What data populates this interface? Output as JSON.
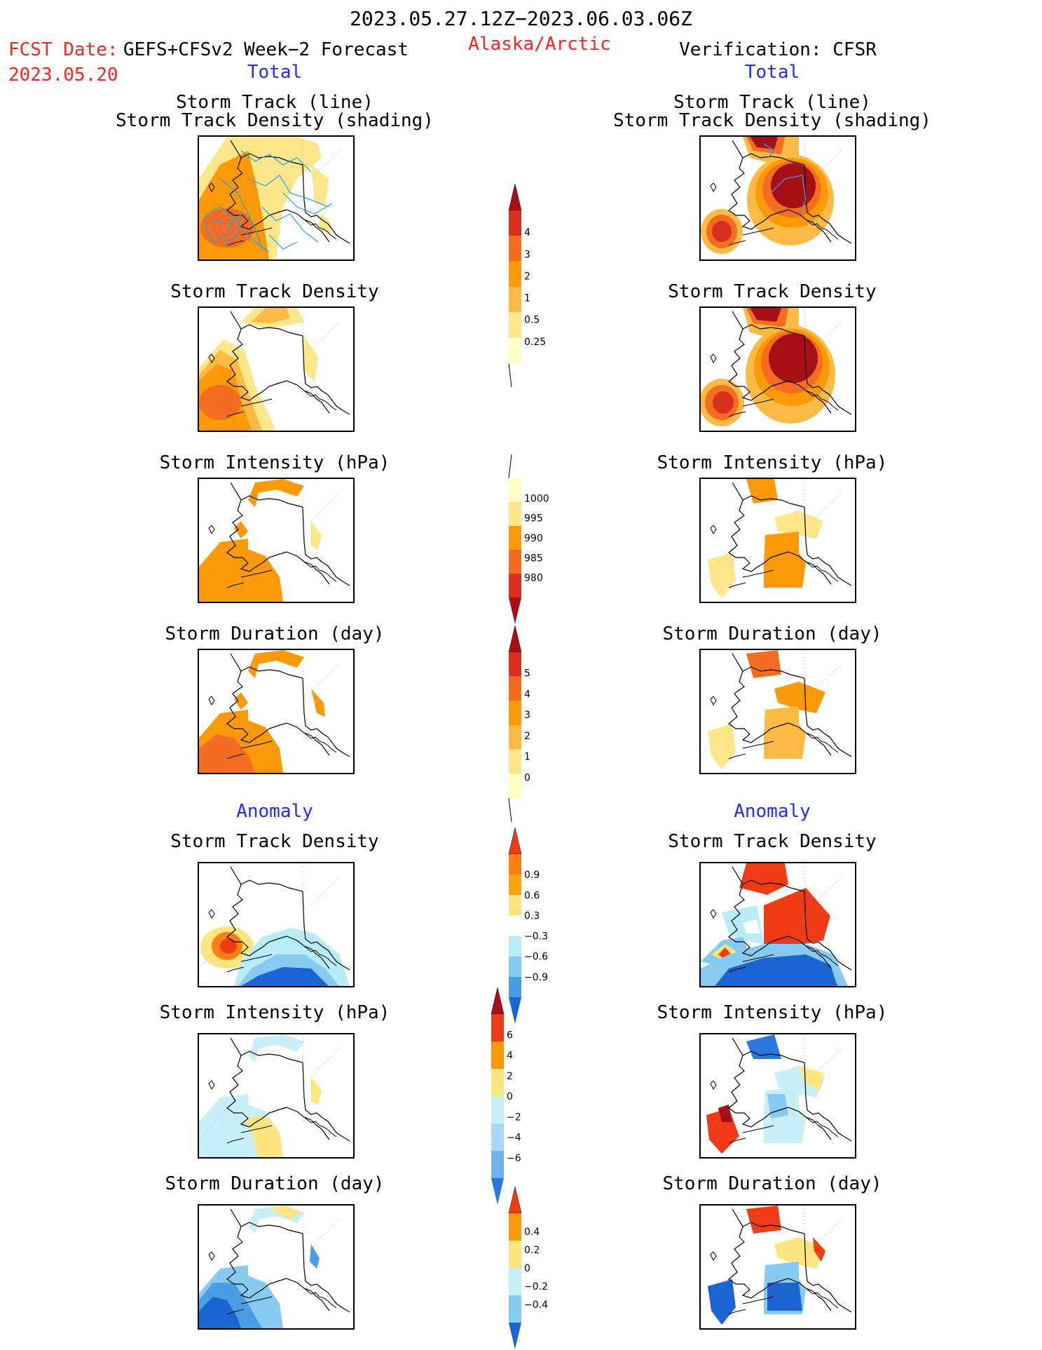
{
  "header": {
    "period": "2023.05.27.12Z−2023.06.03.06Z",
    "fcst_prefix": "FCST Date:",
    "fcst_model": "GEFS+CFSv2 Week−2 Forecast",
    "fcst_date": "2023.05.20",
    "region": "Alaska/Arctic",
    "verification": "Verification: CFSR"
  },
  "sections": {
    "total": "Total",
    "anomaly": "Anomaly"
  },
  "titles": {
    "track_line": "Storm Track (line)",
    "track_density_shading": "Storm Track Density (shading)",
    "track_density": "Storm Track Density",
    "intensity": "Storm Intensity (hPa)",
    "duration": "Storm Duration (day)"
  },
  "colorbars": {
    "density": {
      "labels": [
        "4",
        "3",
        "2",
        "1",
        "0.5",
        "0.25"
      ],
      "colors": [
        "#a50f15",
        "#d7301f",
        "#f46d20",
        "#fb9a06",
        "#fdbb45",
        "#fee68a",
        "#ffffc8"
      ]
    },
    "intensity": {
      "labels": [
        "1000",
        "995",
        "990",
        "985",
        "980"
      ],
      "colors": [
        "#ffffc8",
        "#fee68a",
        "#fb9a06",
        "#f46d20",
        "#d7301f",
        "#a50f15"
      ]
    },
    "duration": {
      "labels": [
        "5",
        "4",
        "3",
        "2",
        "1",
        "0"
      ],
      "colors": [
        "#a50f15",
        "#d7301f",
        "#f46d20",
        "#fb9a06",
        "#fdbb45",
        "#fee68a",
        "#ffffc8"
      ]
    },
    "anom_density": {
      "labels": [
        "0.9",
        "0.6",
        "0.3",
        "−0.3",
        "−0.6",
        "−0.9"
      ],
      "colors": [
        "#ef3b16",
        "#fd7f12",
        "#fba40c",
        "#fde680",
        "#ffffff",
        "#b8ecf6",
        "#87caf2",
        "#4a9ee6",
        "#1c64d2"
      ]
    },
    "anom_intensity": {
      "labels": [
        "6",
        "4",
        "2",
        "0",
        "−2",
        "−4",
        "−6"
      ],
      "colors": [
        "#a50f15",
        "#ef3b16",
        "#fb9a06",
        "#fde680",
        "#c9f0f8",
        "#a9d8f4",
        "#6fb2ee",
        "#2a78dc"
      ]
    },
    "anom_duration": {
      "labels": [
        "0.4",
        "0.2",
        "0",
        "−0.2",
        "−0.4"
      ],
      "colors": [
        "#ef3b16",
        "#fb9a06",
        "#fde680",
        "#c9f0f8",
        "#87caf2",
        "#1c64d2"
      ]
    }
  },
  "palette": {
    "track_line": "#1aa6e6",
    "track_line_verif": "#4a8fd8",
    "coast": "#000000"
  }
}
